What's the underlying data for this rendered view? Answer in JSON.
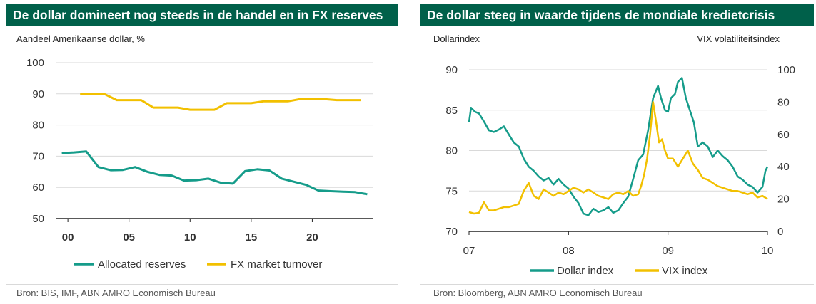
{
  "colors": {
    "green": "#159c8a",
    "yellow": "#f2c000",
    "title_bg": "#00604a",
    "grid": "#d9d9d9"
  },
  "left": {
    "title": "De dollar domineert nog steeds in de handel en in FX reserves",
    "ylabel": "Aandeel Amerikaanse dollar, %",
    "source": "Bron: BIS, IMF, ABN AMRO Economisch Bureau"
  },
  "right": {
    "title": "De dollar steeg in waarde tijdens de mondiale kredietcrisis",
    "ylabel_left": "Dollarindex",
    "ylabel_right": "VIX volatiliteitsindex",
    "source": "Bron: Bloomberg, ABN AMRO Economisch Bureau"
  },
  "chart_data": [
    {
      "type": "line",
      "title": "De dollar domineert nog steeds in de handel en in FX reserves",
      "ylabel": "Aandeel Amerikaanse dollar, %",
      "xlim": [
        -1,
        25
      ],
      "ylim": [
        50,
        100
      ],
      "yticks": [
        50,
        60,
        70,
        80,
        90,
        100
      ],
      "xticks": [
        0,
        5,
        10,
        15,
        20
      ],
      "xtick_labels": [
        "00",
        "05",
        "10",
        "15",
        "20"
      ],
      "grid": true,
      "legend": "bottom",
      "series": [
        {
          "name": "Allocated reserves",
          "color": "#159c8a",
          "x": [
            -0.5,
            0.5,
            1.5,
            2.5,
            3.5,
            4.5,
            5.5,
            6.5,
            7.5,
            8.5,
            9.5,
            10.5,
            11.5,
            12.5,
            13.5,
            14.5,
            15.5,
            16.5,
            17.5,
            18.5,
            19.5,
            20.5,
            21.5,
            22.5,
            23.5,
            24.5
          ],
          "y": [
            71,
            71.2,
            71.5,
            66.5,
            65.5,
            65.6,
            66.5,
            65,
            64,
            63.8,
            62.2,
            62.3,
            62.8,
            61.5,
            61.2,
            65.2,
            65.8,
            65.4,
            62.8,
            61.8,
            60.8,
            59,
            58.8,
            58.6,
            58.5,
            57.8
          ]
        },
        {
          "name": "FX market turnover",
          "color": "#f2c000",
          "x": [
            1,
            2,
            3,
            4,
            5,
            6,
            7,
            8,
            9,
            10,
            11,
            12,
            13,
            14,
            15,
            16,
            17,
            18,
            19,
            20,
            21,
            22,
            23,
            24
          ],
          "y": [
            89.9,
            89.9,
            89.9,
            88,
            88,
            88,
            85.6,
            85.6,
            85.6,
            84.9,
            84.9,
            84.9,
            87,
            87,
            87,
            87.6,
            87.6,
            87.6,
            88.3,
            88.3,
            88.3,
            88,
            88,
            88
          ]
        }
      ]
    },
    {
      "type": "line",
      "title": "De dollar steeg in waarde tijdens de mondiale kredietcrisis",
      "ylabel": "Dollarindex",
      "y2label": "VIX volatiliteitsindex",
      "xlim": [
        2007,
        2010
      ],
      "ylim": [
        70,
        90
      ],
      "y2lim": [
        0,
        100
      ],
      "yticks": [
        70,
        75,
        80,
        85,
        90
      ],
      "y2ticks": [
        0,
        20,
        40,
        60,
        80,
        100
      ],
      "xticks": [
        2007,
        2008,
        2009,
        2010
      ],
      "xtick_labels": [
        "07",
        "08",
        "09",
        "10"
      ],
      "grid": true,
      "legend": "bottom",
      "series": [
        {
          "name": "Dollar index",
          "axis": "left",
          "color": "#159c8a",
          "x": [
            2007.0,
            2007.02,
            2007.06,
            2007.1,
            2007.15,
            2007.2,
            2007.25,
            2007.3,
            2007.35,
            2007.4,
            2007.45,
            2007.5,
            2007.55,
            2007.6,
            2007.65,
            2007.7,
            2007.75,
            2007.8,
            2007.85,
            2007.9,
            2007.95,
            2008.0,
            2008.05,
            2008.1,
            2008.15,
            2008.2,
            2008.25,
            2008.3,
            2008.35,
            2008.4,
            2008.45,
            2008.5,
            2008.55,
            2008.6,
            2008.65,
            2008.7,
            2008.75,
            2008.8,
            2008.85,
            2008.9,
            2008.93,
            2008.97,
            2009.0,
            2009.03,
            2009.07,
            2009.1,
            2009.14,
            2009.18,
            2009.22,
            2009.26,
            2009.3,
            2009.35,
            2009.4,
            2009.45,
            2009.5,
            2009.55,
            2009.6,
            2009.65,
            2009.7,
            2009.75,
            2009.8,
            2009.85,
            2009.9,
            2009.95,
            2009.98,
            2010.0
          ],
          "y": [
            83.5,
            85.3,
            84.8,
            84.6,
            83.6,
            82.5,
            82.3,
            82.6,
            83.0,
            82.0,
            81.0,
            80.5,
            79.0,
            78.0,
            77.5,
            76.8,
            76.3,
            76.6,
            75.8,
            76.5,
            75.8,
            75.3,
            74.3,
            73.5,
            72.2,
            72.0,
            72.8,
            72.4,
            72.6,
            73.0,
            72.3,
            72.6,
            73.5,
            74.3,
            76.5,
            78.8,
            79.5,
            82.5,
            86.5,
            88.0,
            86.5,
            85.0,
            84.8,
            86.5,
            87.0,
            88.5,
            89.0,
            86.5,
            85.0,
            83.5,
            80.5,
            81.0,
            80.5,
            79.2,
            80.0,
            79.3,
            78.8,
            78.0,
            76.8,
            76.4,
            75.8,
            75.5,
            74.8,
            75.5,
            77.5,
            78.0
          ]
        },
        {
          "name": "VIX index",
          "axis": "right",
          "color": "#f2c000",
          "x": [
            2007.0,
            2007.05,
            2007.1,
            2007.15,
            2007.2,
            2007.25,
            2007.3,
            2007.35,
            2007.4,
            2007.45,
            2007.5,
            2007.55,
            2007.6,
            2007.65,
            2007.7,
            2007.75,
            2007.8,
            2007.85,
            2007.9,
            2007.95,
            2008.0,
            2008.05,
            2008.1,
            2008.15,
            2008.2,
            2008.25,
            2008.3,
            2008.35,
            2008.4,
            2008.45,
            2008.5,
            2008.55,
            2008.6,
            2008.65,
            2008.7,
            2008.73,
            2008.76,
            2008.79,
            2008.82,
            2008.85,
            2008.88,
            2008.91,
            2008.94,
            2008.97,
            2009.0,
            2009.05,
            2009.1,
            2009.15,
            2009.2,
            2009.25,
            2009.3,
            2009.35,
            2009.4,
            2009.45,
            2009.5,
            2009.55,
            2009.6,
            2009.65,
            2009.7,
            2009.75,
            2009.8,
            2009.85,
            2009.9,
            2009.95,
            2010.0
          ],
          "y": [
            12,
            11,
            11.5,
            18,
            13,
            13,
            14,
            15,
            15,
            16,
            17,
            25,
            30,
            22,
            20,
            26,
            24,
            22,
            24,
            23,
            25,
            27,
            26,
            24,
            26,
            24,
            22,
            21,
            20,
            23,
            24,
            23,
            25,
            22,
            23,
            28,
            35,
            45,
            60,
            80,
            68,
            55,
            57,
            50,
            45,
            45,
            40,
            45,
            50,
            42,
            38,
            33,
            32,
            30,
            28,
            27,
            26,
            25,
            25,
            24,
            23,
            24,
            21,
            22,
            20
          ]
        }
      ]
    }
  ]
}
